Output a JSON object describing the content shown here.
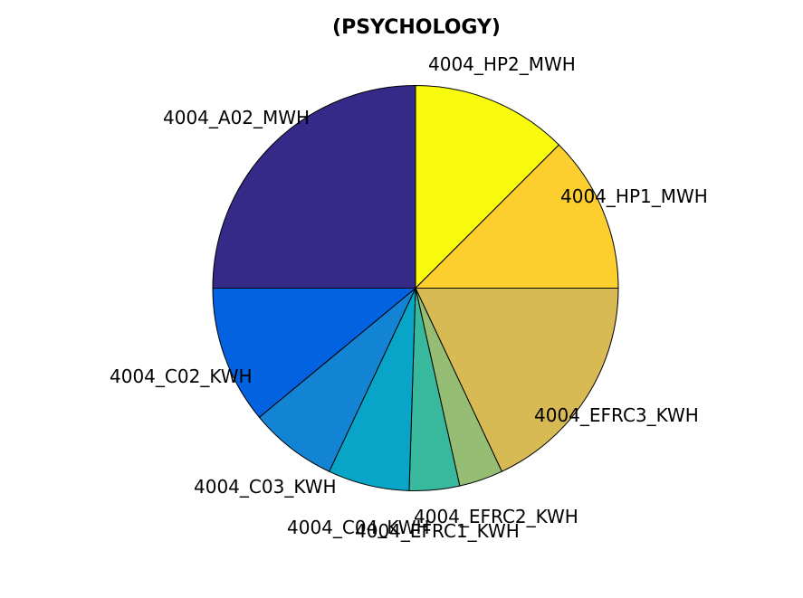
{
  "chart_data": {
    "type": "pie",
    "title": "(PSYCHOLOGY)",
    "slices": [
      {
        "label": "4004_HP2_MWH",
        "value": 12.5,
        "color": "#f9fb0e"
      },
      {
        "label": "4004_HP1_MWH",
        "value": 12.5,
        "color": "#fcce2e"
      },
      {
        "label": "4004_EFRC3_KWH",
        "value": 18.0,
        "color": "#d8ba55"
      },
      {
        "label": "4004_EFRC2_KWH",
        "value": 3.5,
        "color": "#95be74"
      },
      {
        "label": "4004_EFRC1_KWH",
        "value": 4.0,
        "color": "#38b89d"
      },
      {
        "label": "4004_C04_KWH",
        "value": 6.5,
        "color": "#08a5c8"
      },
      {
        "label": "4004_C03_KWH",
        "value": 7.0,
        "color": "#1384d3"
      },
      {
        "label": "4004_C02_KWH",
        "value": 11.0,
        "color": "#0262e0"
      },
      {
        "label": "4004_A02_MWH",
        "value": 25.0,
        "color": "#352a87"
      }
    ]
  }
}
